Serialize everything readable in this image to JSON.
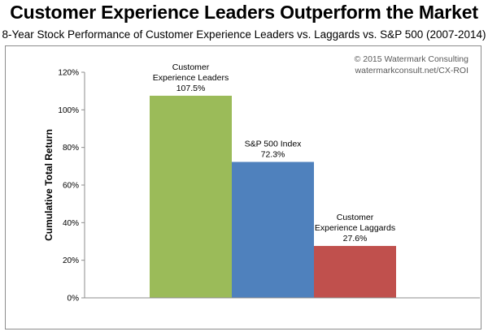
{
  "header": {
    "title": "Customer Experience Leaders Outperform the Market",
    "subtitle": "8-Year Stock Performance of Customer Experience Leaders vs. Laggards vs. S&P 500 (2007-2014)"
  },
  "copyright": {
    "line1": "© 2015 Watermark Consulting",
    "line2": "watermarkconsult.net/CX-ROI"
  },
  "chart_data": {
    "type": "bar",
    "title": "Customer Experience Leaders Outperform the Market",
    "subtitle": "8-Year Stock Performance of Customer Experience Leaders vs. Laggards vs. S&P 500 (2007-2014)",
    "xlabel": "",
    "ylabel": "Cumulative Total Return",
    "ylim": [
      0,
      120
    ],
    "yticks": [
      "0%",
      "20%",
      "40%",
      "60%",
      "80%",
      "100%",
      "120%"
    ],
    "grid": false,
    "legend": "none",
    "bars": [
      {
        "label_lines": [
          "Customer",
          "Experience Leaders"
        ],
        "value": 107.5,
        "value_label": "107.5%",
        "color": "#9bbb59"
      },
      {
        "label_lines": [
          "S&P 500 Index"
        ],
        "value": 72.3,
        "value_label": "72.3%",
        "color": "#4f81bd"
      },
      {
        "label_lines": [
          "Customer",
          "Experience Laggards"
        ],
        "value": 27.6,
        "value_label": "27.6%",
        "color": "#c0504d"
      }
    ]
  }
}
